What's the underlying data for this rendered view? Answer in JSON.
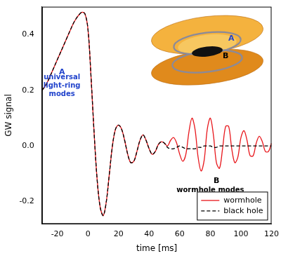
{
  "chart_data": {
    "type": "line",
    "x_label": "time [ms]",
    "y_label": "GW signal",
    "xlim": [
      -30,
      120
    ],
    "xticks": [
      -20,
      0,
      20,
      40,
      60,
      80,
      100,
      120
    ],
    "ylim": [
      -0.28,
      0.5
    ],
    "yticks": [
      {
        "value": -0.2,
        "label": "-0.2"
      },
      {
        "value": 0,
        "label": "0.0"
      },
      {
        "value": 0.2,
        "label": "0.2"
      },
      {
        "value": 0.4,
        "label": "0.4"
      }
    ],
    "grid": false,
    "legend": "lower right",
    "x": [
      -30,
      -28,
      -26,
      -24,
      -22,
      -20,
      -18,
      -16,
      -14,
      -12,
      -10,
      -8,
      -6,
      -4,
      -2,
      0,
      2,
      4,
      6,
      8,
      10,
      12,
      14,
      16,
      18,
      20,
      22,
      24,
      26,
      28,
      30,
      32,
      34,
      36,
      38,
      40,
      42,
      44,
      46,
      48,
      50,
      52,
      54,
      56,
      58,
      60,
      62,
      64,
      66,
      68,
      70,
      72,
      74,
      76,
      78,
      80,
      82,
      84,
      86,
      88,
      90,
      92,
      94,
      96,
      98,
      100,
      102,
      104,
      106,
      108,
      110,
      112,
      114,
      116,
      118,
      120
    ],
    "series": [
      {
        "name": "wormhole",
        "color": "#e8161b",
        "line_style": "solid",
        "values": [
          0.2,
          0.215,
          0.235,
          0.26,
          0.285,
          0.31,
          0.335,
          0.36,
          0.385,
          0.41,
          0.435,
          0.455,
          0.47,
          0.48,
          0.475,
          0.42,
          0.25,
          0.05,
          -0.12,
          -0.22,
          -0.25,
          -0.2,
          -0.1,
          0.0,
          0.06,
          0.075,
          0.06,
          0.02,
          -0.03,
          -0.06,
          -0.055,
          -0.02,
          0.02,
          0.04,
          0.02,
          -0.01,
          -0.03,
          -0.02,
          0.005,
          0.015,
          0.01,
          0.0,
          0.02,
          0.03,
          0.01,
          -0.03,
          -0.055,
          -0.03,
          0.05,
          0.1,
          0.06,
          -0.04,
          -0.09,
          -0.05,
          0.06,
          0.1,
          0.04,
          -0.06,
          -0.08,
          -0.01,
          0.07,
          0.07,
          -0.01,
          -0.06,
          -0.04,
          0.03,
          0.055,
          0.02,
          -0.035,
          -0.035,
          0.01,
          0.035,
          0.015,
          -0.02,
          -0.02,
          0.01
        ]
      },
      {
        "name": "black hole",
        "color": "#000000",
        "line_style": "dashed",
        "values": [
          0.2,
          0.215,
          0.235,
          0.26,
          0.285,
          0.31,
          0.335,
          0.36,
          0.385,
          0.41,
          0.435,
          0.455,
          0.47,
          0.48,
          0.475,
          0.42,
          0.25,
          0.05,
          -0.12,
          -0.22,
          -0.25,
          -0.2,
          -0.1,
          0.0,
          0.06,
          0.075,
          0.06,
          0.02,
          -0.03,
          -0.06,
          -0.055,
          -0.02,
          0.02,
          0.04,
          0.02,
          -0.01,
          -0.03,
          -0.02,
          0.005,
          0.015,
          0.01,
          -0.005,
          -0.01,
          -0.01,
          -0.005,
          0.0,
          -0.005,
          -0.01,
          -0.01,
          -0.01,
          -0.01,
          -0.005,
          -0.005,
          0.0,
          0.0,
          0.0,
          -0.005,
          -0.005,
          0.0,
          0.0,
          0.0,
          0.0,
          0.0,
          0.0,
          0.0,
          0.0,
          0.0,
          0.0,
          0.0,
          0.0,
          0.0,
          0.0,
          0.0,
          0.0,
          0.0,
          0.0
        ]
      }
    ],
    "annotations": [
      {
        "text": "A",
        "x": -17,
        "y": 0.265,
        "color": "#2244cc"
      },
      {
        "text": "universal light-ring modes",
        "x": -17,
        "y": 0.215,
        "color": "#2244cc"
      },
      {
        "text": "B",
        "x": 84,
        "y": -0.125,
        "color": "#000000"
      },
      {
        "text": "wormhole modes",
        "x": 80,
        "y": -0.158,
        "color": "#000000"
      }
    ],
    "inset_labels": [
      {
        "text": "A",
        "color": "#2244cc"
      },
      {
        "text": "B",
        "color": "#000000"
      }
    ]
  }
}
